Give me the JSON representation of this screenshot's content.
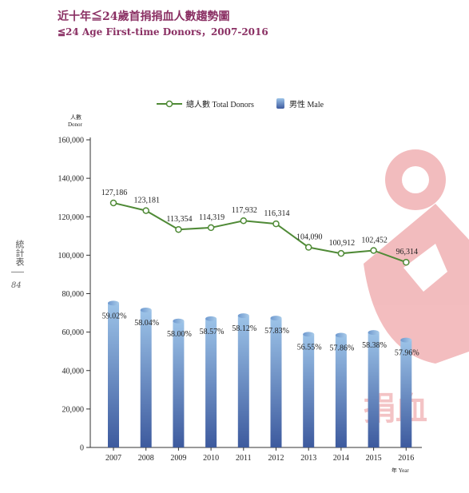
{
  "title_zh": "近十年≦24歲首捐捐血人數趨勢圖",
  "title_en": "≦24 Age First-time Donors，2007-2016",
  "side_label": "統計表",
  "side_page": "84",
  "watermark_text": "捐血",
  "chart_data": {
    "type": "bar+line",
    "categories": [
      "2007",
      "2008",
      "2009",
      "2010",
      "2011",
      "2012",
      "2013",
      "2014",
      "2015",
      "2016"
    ],
    "series": [
      {
        "name": "總人數 Total Donors",
        "type": "line",
        "color": "#4f8a36",
        "values": [
          127186,
          123181,
          113354,
          114319,
          117932,
          116314,
          104090,
          100912,
          102452,
          96314
        ],
        "labels": [
          "127,186",
          "123,181",
          "113,354",
          "114,319",
          "117,932",
          "116,314",
          "104,090",
          "100,912",
          "102,452",
          "96,314"
        ]
      },
      {
        "name": "男性 Male",
        "type": "bar",
        "color": "#4f6fae",
        "values": [
          75067,
          71495,
          65745,
          66957,
          68542,
          67264,
          58863,
          58388,
          59812,
          55823
        ],
        "labels": [
          "59.02%",
          "58.04%",
          "58.00%",
          "58.57%",
          "58.12%",
          "57.83%",
          "56.55%",
          "57.86%",
          "58.38%",
          "57.96%"
        ]
      }
    ],
    "ylabel_zh": "人數",
    "ylabel_en": "Donor",
    "xlabel": "年 Year",
    "ylim": [
      0,
      160000
    ],
    "yticks": [
      0,
      20000,
      40000,
      60000,
      80000,
      100000,
      120000,
      140000,
      160000
    ],
    "ytick_labels": [
      "0",
      "20,000",
      "40,000",
      "60,000",
      "80,000",
      "100,000",
      "120,000",
      "140,000",
      "160,000"
    ],
    "legend_position": "top-center",
    "grid": false
  }
}
